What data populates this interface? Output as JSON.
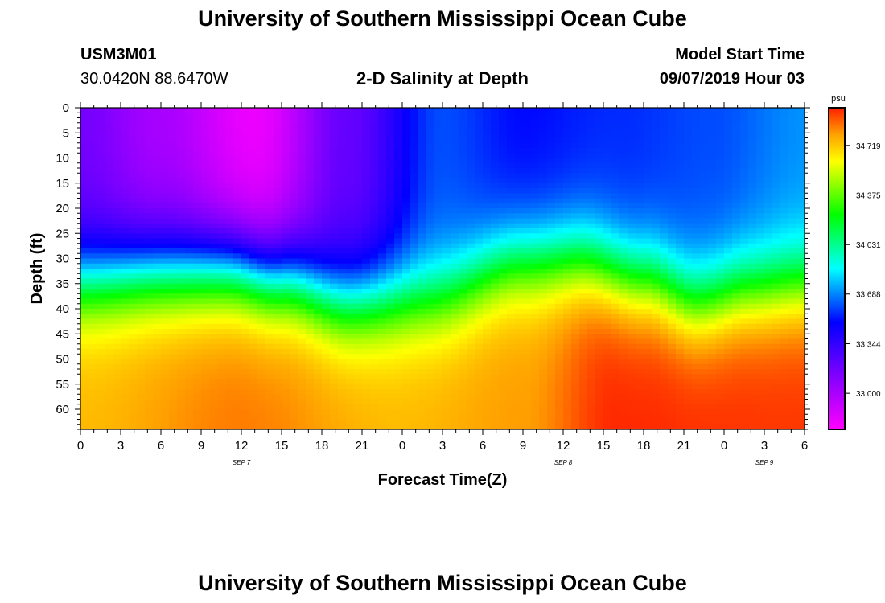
{
  "page_title": "University of Southern Mississippi Ocean Cube",
  "footer_title": "University of Southern Mississippi Ocean Cube",
  "station": {
    "id": "USM3M01",
    "coords": "30.0420N 88.6470W"
  },
  "plot_title": "2-D Salinity at Depth",
  "model_start": {
    "label": "Model Start Time",
    "value": "09/07/2019 Hour 03"
  },
  "chart_data": {
    "type": "heatmap",
    "title": "2-D Salinity at Depth",
    "xlabel": "Forecast Time(Z)",
    "ylabel": "Depth (ft)",
    "x_ticks": [
      "0",
      "3",
      "6",
      "9",
      "12",
      "15",
      "18",
      "21",
      "0",
      "3",
      "6",
      "9",
      "12",
      "15",
      "18",
      "21",
      "0",
      "3",
      "6"
    ],
    "date_labels": [
      {
        "text": "SEP 7",
        "tick_index": 4
      },
      {
        "text": "SEP 8",
        "tick_index": 12
      },
      {
        "text": "SEP 9",
        "tick_index": 17
      }
    ],
    "xlim_hours": [
      0,
      54
    ],
    "ylim_ft": [
      0,
      64
    ],
    "y_ticks": [
      0,
      5,
      10,
      15,
      20,
      25,
      30,
      35,
      40,
      45,
      50,
      55,
      60
    ],
    "colorbar": {
      "unit": "psu",
      "range": [
        32.75,
        34.98
      ],
      "ticks": [
        "34.719",
        "34.375",
        "34.031",
        "33.688",
        "33.344",
        "33.000"
      ]
    },
    "surface_salinity_psu": [
      [
        0,
        33.15
      ],
      [
        6,
        33.0
      ],
      [
        13,
        32.8
      ],
      [
        20,
        33.2
      ],
      [
        27,
        33.6
      ],
      [
        33,
        33.5
      ],
      [
        40,
        33.55
      ],
      [
        47,
        33.6
      ],
      [
        54,
        33.7
      ]
    ],
    "bottom_salinity_psu": [
      [
        0,
        34.75
      ],
      [
        12,
        34.85
      ],
      [
        24,
        34.75
      ],
      [
        33,
        34.8
      ],
      [
        40,
        34.97
      ],
      [
        54,
        34.95
      ]
    ],
    "halocline_depth_ft": [
      [
        0,
        34
      ],
      [
        6,
        32.5
      ],
      [
        11,
        32
      ],
      [
        15,
        34
      ],
      [
        20,
        38.5
      ],
      [
        26,
        37.5
      ],
      [
        33,
        30.5
      ],
      [
        37,
        30
      ],
      [
        42,
        34
      ],
      [
        46,
        38.5
      ],
      [
        50,
        36
      ],
      [
        54,
        35
      ]
    ]
  }
}
